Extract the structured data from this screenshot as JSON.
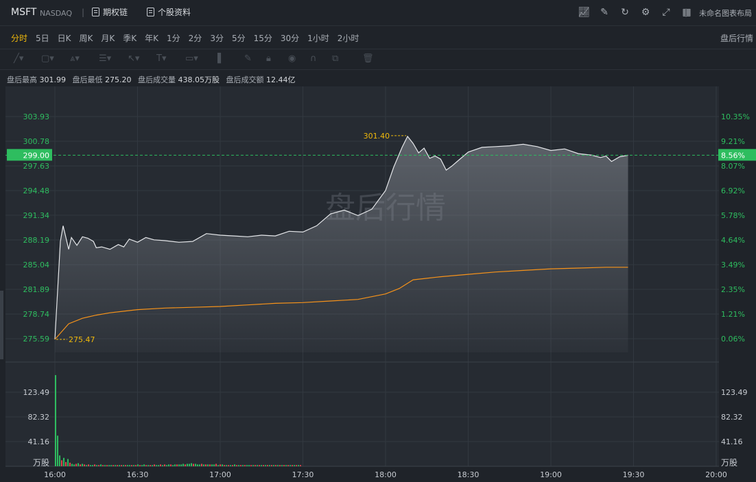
{
  "header": {
    "symbol": "MSFT",
    "exchange": "NASDAQ",
    "options_chain_label": "期权链",
    "stock_info_label": "个股资料",
    "layout_name": "未命名图表布局",
    "icons": [
      "indicator-icon",
      "draw-icon",
      "refresh-icon",
      "settings-icon",
      "fullscreen-icon",
      "layout-grid-icon"
    ]
  },
  "periods": {
    "items": [
      "分时",
      "5日",
      "日K",
      "周K",
      "月K",
      "季K",
      "年K",
      "1分",
      "2分",
      "3分",
      "5分",
      "15分",
      "30分",
      "1小时",
      "2小时"
    ],
    "active": "分时",
    "after_hours_label": "盘后行情"
  },
  "drawing_tools": [
    "trendline-icon",
    "rectangle-icon",
    "pattern-icon",
    "fib-icon",
    "arrow-icon",
    "text-icon",
    "ruler-icon",
    "measure-icon",
    "pencil-icon",
    "lock-icon",
    "eye-icon",
    "magnet-icon",
    "group-icon",
    "trash-icon"
  ],
  "stats": {
    "high_label": "盘后最高",
    "high_value": "301.99",
    "low_label": "盘后最低",
    "low_value": "275.20",
    "volume_label": "盘后成交量",
    "volume_value": "438.05万股",
    "amount_label": "盘后成交额",
    "amount_value": "12.44亿"
  },
  "watermark": "盘后行情",
  "colors": {
    "up": "#2ebd5f",
    "down": "#e0494f",
    "price_line": "#e6e8eb",
    "avg_line": "#f7931a",
    "label_accent": "#f0b90b",
    "current_price_bg": "#2ebd5f"
  },
  "chart_data": {
    "type": "line",
    "x_ticks": [
      "16:00",
      "16:30",
      "17:00",
      "17:30",
      "18:00",
      "18:30",
      "19:00",
      "19:30",
      "20:00"
    ],
    "price_ticks": [
      "303.93",
      "300.78",
      "297.63",
      "294.48",
      "291.34",
      "288.19",
      "285.04",
      "281.89",
      "278.74",
      "275.59"
    ],
    "percent_ticks": [
      "10.35%",
      "9.21%",
      "8.07%",
      "6.92%",
      "5.78%",
      "4.64%",
      "3.49%",
      "2.35%",
      "1.21%",
      "0.06%"
    ],
    "ylim": [
      275.59,
      303.93
    ],
    "reference_close": 275.42,
    "current_price": "299.00",
    "current_percent": "8.56%",
    "high_annotation": "301.40",
    "low_annotation": "275.47",
    "price_series": {
      "name": "price",
      "x": [
        "16:00",
        "16:02",
        "16:03",
        "16:05",
        "16:06",
        "16:08",
        "16:10",
        "16:12",
        "16:14",
        "16:15",
        "16:17",
        "16:20",
        "16:23",
        "16:25",
        "16:27",
        "16:30",
        "16:33",
        "16:36",
        "16:40",
        "16:45",
        "16:50",
        "16:55",
        "17:00",
        "17:05",
        "17:10",
        "17:15",
        "17:20",
        "17:25",
        "17:30",
        "17:35",
        "17:40",
        "17:45",
        "17:50",
        "17:55",
        "18:00",
        "18:03",
        "18:06",
        "18:08",
        "18:10",
        "18:12",
        "18:14",
        "18:16",
        "18:18",
        "18:20",
        "18:22",
        "18:24",
        "18:26",
        "18:30",
        "18:35",
        "18:40",
        "18:45",
        "18:50",
        "18:55",
        "19:00",
        "19:05",
        "19:10",
        "19:15",
        "19:18",
        "19:20",
        "19:22",
        "19:25",
        "19:28"
      ],
      "values": [
        275.5,
        288.0,
        290.0,
        287.0,
        288.5,
        287.5,
        288.6,
        288.4,
        288.0,
        287.2,
        287.3,
        287.0,
        287.6,
        287.3,
        288.3,
        287.9,
        288.5,
        288.2,
        288.1,
        287.9,
        288.0,
        289.0,
        288.8,
        288.7,
        288.6,
        288.8,
        288.7,
        289.3,
        289.2,
        290.0,
        291.5,
        292.0,
        291.3,
        292.1,
        294.5,
        297.5,
        300.0,
        301.4,
        300.5,
        299.3,
        299.9,
        298.6,
        298.9,
        298.5,
        297.1,
        297.6,
        298.2,
        299.4,
        300.0,
        300.1,
        300.2,
        300.4,
        300.1,
        299.6,
        299.8,
        299.2,
        299.0,
        298.7,
        298.9,
        298.2,
        298.8,
        299.0
      ]
    },
    "avg_series": {
      "name": "average",
      "x": [
        "16:00",
        "16:05",
        "16:10",
        "16:15",
        "16:20",
        "16:25",
        "16:30",
        "16:40",
        "16:50",
        "17:00",
        "17:10",
        "17:20",
        "17:30",
        "17:40",
        "17:50",
        "18:00",
        "18:05",
        "18:10",
        "18:15",
        "18:20",
        "18:30",
        "18:40",
        "18:50",
        "19:00",
        "19:10",
        "19:20",
        "19:28"
      ],
      "values": [
        275.5,
        277.5,
        278.2,
        278.6,
        278.9,
        279.1,
        279.3,
        279.5,
        279.6,
        279.7,
        279.9,
        280.1,
        280.2,
        280.4,
        280.6,
        281.3,
        282.0,
        283.1,
        283.3,
        283.5,
        283.8,
        284.1,
        284.3,
        284.5,
        284.6,
        284.7,
        284.7
      ]
    },
    "volume": {
      "unit_label": "万股",
      "ticks": [
        "123.49",
        "82.32",
        "41.16"
      ],
      "ylim": [
        0,
        164.65
      ],
      "values": [
        152,
        51,
        18,
        10,
        14,
        7,
        12,
        6,
        4,
        3,
        4,
        5,
        3,
        4,
        3,
        2,
        3,
        2,
        2,
        3,
        2,
        2,
        3,
        2,
        2,
        2,
        2,
        2,
        2,
        2,
        2,
        2,
        2,
        2,
        2,
        2,
        2,
        2,
        2,
        2,
        3,
        2,
        2,
        3,
        2,
        2,
        2,
        2,
        3,
        2,
        2,
        3,
        2,
        3,
        2,
        3,
        3,
        2,
        3,
        3,
        3,
        3,
        4,
        3,
        4,
        4,
        5,
        4,
        4,
        3,
        3,
        4,
        3,
        3,
        3,
        3,
        3,
        3,
        4,
        2,
        3,
        3,
        2,
        2,
        2,
        2,
        2,
        3,
        2,
        2,
        2,
        2,
        2,
        2,
        2,
        2,
        2,
        2,
        2,
        2,
        2,
        2,
        2,
        2,
        2,
        2,
        2,
        2,
        2,
        2,
        2,
        2,
        2,
        2,
        2,
        2,
        2,
        2,
        2,
        2
      ],
      "directions": [
        "up",
        "up",
        "up",
        "down",
        "up",
        "down",
        "up",
        "down",
        "up",
        "up",
        "down",
        "up",
        "down",
        "up",
        "down",
        "up",
        "down",
        "up",
        "up",
        "down",
        "up",
        "down",
        "up",
        "down",
        "up",
        "down",
        "up",
        "up",
        "down",
        "up",
        "down",
        "up",
        "down",
        "up",
        "down",
        "up",
        "up",
        "down",
        "up",
        "down",
        "up",
        "down",
        "up",
        "up",
        "down",
        "up",
        "down",
        "up",
        "down",
        "up",
        "up",
        "down",
        "up",
        "down",
        "up",
        "up",
        "down",
        "up",
        "up",
        "down",
        "up",
        "up",
        "up",
        "down",
        "up",
        "up",
        "up",
        "down",
        "up",
        "up",
        "up",
        "down",
        "up",
        "down",
        "up",
        "down",
        "up",
        "up",
        "down",
        "up",
        "down",
        "up",
        "down",
        "up",
        "down",
        "up",
        "down",
        "up",
        "down",
        "up",
        "down",
        "up",
        "down",
        "up",
        "up",
        "down",
        "up",
        "down",
        "up",
        "down",
        "up",
        "down",
        "up",
        "down",
        "up",
        "down",
        "up",
        "down",
        "up",
        "down",
        "up",
        "down",
        "up",
        "down",
        "up",
        "down",
        "up",
        "down",
        "up",
        "down",
        "up",
        "down"
      ]
    }
  }
}
